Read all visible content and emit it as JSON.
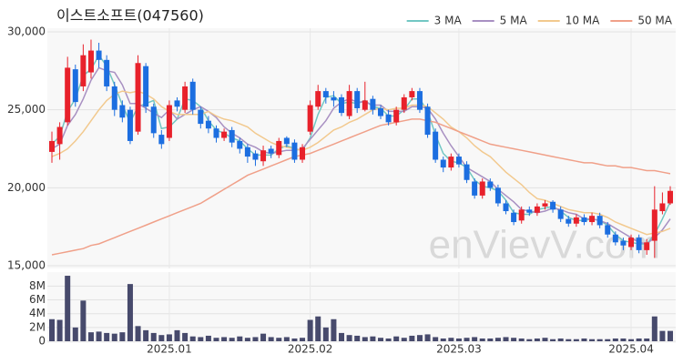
{
  "chart_data": {
    "type": "candlestick",
    "title": "이스트소프트(047560)",
    "watermark": "enVievV.com",
    "categories": [
      null,
      null,
      null,
      null,
      null,
      null,
      null,
      null,
      null,
      null,
      null,
      null,
      null,
      null,
      null,
      "2025.01",
      null,
      null,
      null,
      null,
      null,
      null,
      null,
      null,
      null,
      null,
      null,
      null,
      null,
      null,
      null,
      null,
      null,
      "2025.02",
      null,
      null,
      null,
      null,
      null,
      null,
      null,
      null,
      null,
      null,
      null,
      null,
      null,
      null,
      null,
      null,
      null,
      null,
      "2025.03",
      null,
      null,
      null,
      null,
      null,
      null,
      null,
      null,
      null,
      null,
      null,
      null,
      null,
      null,
      null,
      null,
      null,
      null,
      null,
      null,
      null,
      "2025.04",
      null,
      null,
      null,
      null,
      null
    ],
    "open": [
      22300,
      22800,
      24200,
      27600,
      26500,
      27400,
      28800,
      28200,
      26500,
      25300,
      25000,
      23600,
      27800,
      25200,
      23400,
      23200,
      25600,
      25000,
      26800,
      25000,
      24300,
      23800,
      23200,
      23700,
      23000,
      22600,
      22200,
      21700,
      22500,
      22100,
      23200,
      22900,
      21800,
      23600,
      25200,
      26200,
      25800,
      25800,
      24600,
      26200,
      25000,
      25700,
      25100,
      24700,
      24200,
      25000,
      25800,
      26200,
      25200,
      23600,
      21800,
      21300,
      22000,
      21500,
      20400,
      19500,
      20400,
      20000,
      19000,
      18400,
      17900,
      18600,
      18400,
      18800,
      19100,
      18600,
      18000,
      17700,
      18100,
      17800,
      18200,
      17600,
      17000,
      16600,
      16200,
      16800,
      16000,
      16600,
      18500,
      19000
    ],
    "high": [
      23600,
      24200,
      28400,
      27900,
      29200,
      29500,
      29300,
      28500,
      26800,
      25600,
      25200,
      28500,
      28000,
      25400,
      23700,
      25600,
      25800,
      26800,
      27000,
      25200,
      24600,
      24000,
      23800,
      23900,
      23200,
      22800,
      22400,
      22700,
      22700,
      23200,
      23300,
      23100,
      22800,
      25600,
      26600,
      26400,
      26200,
      26000,
      26600,
      26400,
      26800,
      25900,
      25300,
      25000,
      25200,
      26000,
      26400,
      26400,
      25400,
      23800,
      22000,
      22200,
      22200,
      21700,
      20600,
      20600,
      20600,
      20200,
      19200,
      18600,
      18800,
      18800,
      19000,
      19200,
      19200,
      18800,
      18200,
      18300,
      18300,
      18400,
      18400,
      17800,
      17200,
      16800,
      17000,
      17000,
      16700,
      20100,
      19700,
      20100
    ],
    "low": [
      21600,
      21800,
      24000,
      25200,
      26200,
      27000,
      27700,
      26200,
      24600,
      24200,
      22800,
      23400,
      24800,
      23200,
      22500,
      23000,
      24900,
      24800,
      24700,
      23800,
      23500,
      22900,
      23000,
      22600,
      22200,
      21600,
      21400,
      21400,
      21900,
      21900,
      22600,
      21600,
      21600,
      23400,
      25000,
      25400,
      25200,
      24600,
      24400,
      24800,
      24900,
      24700,
      24400,
      24000,
      24000,
      24800,
      25600,
      24800,
      23200,
      21600,
      21000,
      21100,
      21300,
      20300,
      19300,
      19300,
      19800,
      18800,
      18300,
      17600,
      17700,
      18200,
      18200,
      18600,
      18400,
      17800,
      17500,
      17500,
      17600,
      17600,
      17400,
      16800,
      16300,
      16000,
      16000,
      15800,
      15700,
      15500,
      18300,
      18900
    ],
    "close": [
      23000,
      23900,
      27700,
      25500,
      28500,
      28800,
      28200,
      26500,
      25000,
      24500,
      23000,
      28000,
      25200,
      23500,
      22800,
      25300,
      25200,
      26500,
      25000,
      24100,
      23800,
      23200,
      23600,
      22900,
      22500,
      22000,
      21800,
      22400,
      22200,
      23000,
      22800,
      21800,
      22600,
      25300,
      26200,
      25800,
      25600,
      24800,
      26200,
      25100,
      25600,
      25000,
      24600,
      24200,
      25000,
      25800,
      26200,
      25000,
      23400,
      21800,
      21300,
      22000,
      21500,
      20500,
      19500,
      20400,
      20000,
      19000,
      18500,
      17800,
      18600,
      18400,
      18800,
      19000,
      18600,
      18000,
      17700,
      18100,
      17800,
      18200,
      17600,
      17000,
      16500,
      16300,
      16800,
      16000,
      16500,
      18600,
      19000,
      19800
    ],
    "up_color": "#e8212b",
    "down_color": "#1c6ee0",
    "ylim": [
      15000,
      30000
    ],
    "yticks": [
      {
        "value": 15000,
        "label": "15,000"
      },
      {
        "value": 20000,
        "label": "20,000"
      },
      {
        "value": 25000,
        "label": "25,000"
      },
      {
        "value": 30000,
        "label": "30,000"
      }
    ],
    "grid": true,
    "legend": "top-right",
    "series": [
      {
        "name": "3 MA",
        "color": "#72c7c3",
        "values": [
          22800,
          23300,
          24900,
          25700,
          27200,
          27600,
          28500,
          27800,
          26600,
          25300,
          24200,
          25200,
          25400,
          25600,
          23800,
          23900,
          24400,
          25700,
          25600,
          25200,
          24300,
          23700,
          23500,
          23200,
          23000,
          22500,
          22100,
          22100,
          22100,
          22500,
          22700,
          22500,
          22400,
          23200,
          24700,
          25800,
          25900,
          25400,
          25500,
          25400,
          25600,
          25200,
          25100,
          24600,
          24600,
          25000,
          25700,
          25700,
          24900,
          23400,
          22200,
          21700,
          21600,
          21300,
          20500,
          20100,
          20000,
          19800,
          19200,
          18400,
          18300,
          18300,
          18600,
          18700,
          18800,
          18500,
          18100,
          17900,
          17900,
          18000,
          17900,
          17600,
          17000,
          16600,
          16500,
          16400,
          16400,
          17000,
          18000,
          19100
        ]
      },
      {
        "name": "5 MA",
        "color": "#a890c2",
        "values": [
          22500,
          22800,
          24000,
          24700,
          25700,
          26900,
          27700,
          27500,
          27400,
          26600,
          25400,
          25400,
          25100,
          24800,
          24500,
          25000,
          24400,
          24700,
          25000,
          25200,
          24900,
          24500,
          23900,
          23500,
          23200,
          22800,
          22600,
          22300,
          22200,
          22300,
          22400,
          22400,
          22500,
          23100,
          23700,
          24300,
          25100,
          25500,
          25700,
          25500,
          25500,
          25300,
          25300,
          24900,
          24900,
          24900,
          25200,
          25200,
          25100,
          24400,
          23500,
          22700,
          22000,
          21300,
          21000,
          20700,
          20400,
          19900,
          19500,
          19100,
          18600,
          18500,
          18400,
          18500,
          18700,
          18600,
          18400,
          18300,
          18000,
          18000,
          17900,
          17700,
          17400,
          17100,
          16800,
          16500,
          16400,
          16800,
          17300,
          18000
        ]
      },
      {
        "name": "10 MA",
        "color": "#f2c98e",
        "values": [
          22000,
          22200,
          22500,
          23000,
          23600,
          24300,
          25000,
          25600,
          26000,
          26200,
          26100,
          26200,
          26000,
          25700,
          25200,
          24900,
          24700,
          24700,
          24700,
          24700,
          24900,
          24600,
          24400,
          24300,
          24100,
          23900,
          23500,
          23200,
          22900,
          22700,
          22600,
          22500,
          22400,
          22600,
          22900,
          23300,
          23700,
          23900,
          24200,
          24400,
          24700,
          25000,
          25100,
          25000,
          25100,
          25100,
          25300,
          25300,
          25200,
          24800,
          24400,
          23900,
          23600,
          23200,
          22700,
          22300,
          22000,
          21500,
          21000,
          20600,
          20200,
          19700,
          19300,
          19200,
          19000,
          18800,
          18600,
          18500,
          18400,
          18400,
          18300,
          18100,
          17800,
          17600,
          17400,
          17200,
          17000,
          17100,
          17200,
          17400
        ]
      },
      {
        "name": "50 MA",
        "color": "#f0a089",
        "values": [
          15700,
          15800,
          15900,
          16000,
          16100,
          16300,
          16400,
          16600,
          16800,
          17000,
          17200,
          17400,
          17600,
          17800,
          18000,
          18200,
          18400,
          18600,
          18800,
          19000,
          19300,
          19600,
          19900,
          20200,
          20500,
          20800,
          21000,
          21200,
          21400,
          21600,
          21800,
          22000,
          22100,
          22200,
          22400,
          22600,
          22800,
          23000,
          23200,
          23400,
          23600,
          23800,
          24000,
          24100,
          24200,
          24300,
          24400,
          24400,
          24300,
          24200,
          24000,
          23800,
          23600,
          23400,
          23200,
          23000,
          22800,
          22700,
          22600,
          22500,
          22400,
          22300,
          22200,
          22100,
          22000,
          21900,
          21800,
          21700,
          21600,
          21600,
          21500,
          21400,
          21400,
          21300,
          21300,
          21200,
          21100,
          21100,
          21000,
          20900
        ]
      }
    ],
    "volume": {
      "type": "bar",
      "color": "#474a6c",
      "values": [
        3200000,
        3100000,
        9500000,
        2000000,
        5900000,
        1300000,
        1400000,
        1200000,
        1100000,
        1300000,
        8300000,
        2200000,
        1600000,
        1200000,
        900000,
        1000000,
        1600000,
        1200000,
        700000,
        600000,
        800000,
        500000,
        600000,
        500000,
        700000,
        500000,
        600000,
        1100000,
        600000,
        500000,
        600000,
        400000,
        500000,
        3100000,
        3600000,
        2000000,
        3200000,
        1200000,
        900000,
        800000,
        600000,
        700000,
        500000,
        400000,
        700000,
        500000,
        800000,
        900000,
        1000000,
        600000,
        400000,
        500000,
        400000,
        500000,
        600000,
        400000,
        400000,
        500000,
        600000,
        500000,
        400000,
        300000,
        400000,
        500000,
        300000,
        400000,
        300000,
        300000,
        400000,
        300000,
        300000,
        300000,
        400000,
        400000,
        300000,
        400000,
        400000,
        3600000,
        1500000,
        1500000
      ],
      "ylim": [
        0,
        9900000
      ],
      "yticks": [
        0,
        {
          "value": 2000000,
          "label": "2M"
        },
        {
          "value": 4000000,
          "label": "4M"
        },
        {
          "value": 6000000,
          "label": "6M"
        },
        {
          "value": 8000000,
          "label": "8M"
        }
      ]
    }
  }
}
